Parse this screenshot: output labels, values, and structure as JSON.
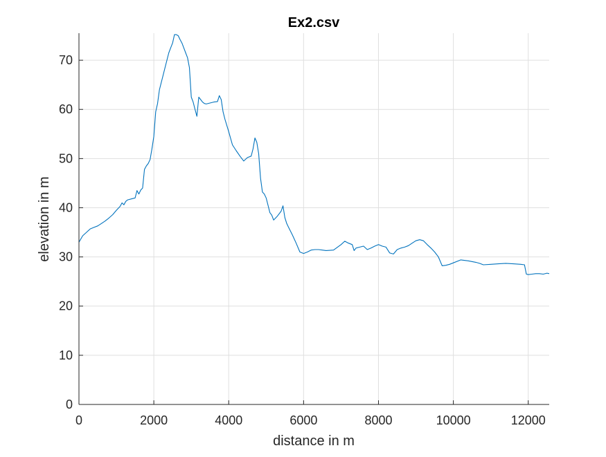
{
  "chart_data": {
    "type": "line",
    "title": "Ex2.csv",
    "xlabel": "distance in m",
    "ylabel": "elevation in m",
    "xlim": [
      0,
      12560
    ],
    "ylim": [
      0,
      75.5
    ],
    "xticks": [
      0,
      2000,
      4000,
      6000,
      8000,
      10000,
      12000
    ],
    "yticks": [
      0,
      10,
      20,
      30,
      40,
      50,
      60,
      70
    ],
    "grid": true,
    "legend": "none",
    "line_color": "#0072bd",
    "series": [
      {
        "x": [
          0,
          100,
          200,
          300,
          400,
          500,
          600,
          700,
          800,
          900,
          1000,
          1100,
          1150,
          1200,
          1250,
          1300,
          1400,
          1500,
          1550,
          1600,
          1650,
          1700,
          1750,
          1800,
          1850,
          1900,
          1950,
          2000,
          2050,
          2100,
          2150,
          2200,
          2250,
          2300,
          2350,
          2400,
          2450,
          2500,
          2550,
          2600,
          2650,
          2700,
          2750,
          2800,
          2850,
          2900,
          2950,
          3000,
          3050,
          3100,
          3150,
          3200,
          3250,
          3300,
          3350,
          3400,
          3500,
          3600,
          3700,
          3750,
          3800,
          3850,
          3900,
          4000,
          4100,
          4200,
          4300,
          4400,
          4500,
          4600,
          4650,
          4700,
          4750,
          4800,
          4850,
          4900,
          4950,
          5000,
          5050,
          5100,
          5150,
          5200,
          5300,
          5400,
          5450,
          5500,
          5550,
          5600,
          5700,
          5800,
          5900,
          6000,
          6100,
          6200,
          6300,
          6400,
          6500,
          6600,
          6800,
          7000,
          7100,
          7200,
          7300,
          7350,
          7400,
          7500,
          7600,
          7700,
          7800,
          7900,
          8000,
          8100,
          8200,
          8300,
          8400,
          8500,
          8600,
          8700,
          8800,
          8900,
          9000,
          9100,
          9200,
          9300,
          9400,
          9500,
          9600,
          9700,
          9800,
          9900,
          10000,
          10200,
          10400,
          10600,
          10700,
          10800,
          11000,
          11200,
          11400,
          11600,
          11800,
          11900,
          11950,
          12000,
          12100,
          12200,
          12300,
          12400,
          12500,
          12560
        ],
        "y": [
          33,
          34.3,
          35,
          35.7,
          36,
          36.3,
          36.8,
          37.3,
          37.9,
          38.6,
          39.5,
          40.3,
          41,
          40.6,
          41.3,
          41.6,
          41.8,
          42,
          43.5,
          42.8,
          43.6,
          44,
          47.8,
          48.5,
          49,
          49.8,
          52,
          54.5,
          59.5,
          61.2,
          64,
          65.5,
          67,
          68.5,
          70,
          71.5,
          72.5,
          73.5,
          75.2,
          75.2,
          75,
          74.2,
          73.5,
          72.5,
          71.5,
          70.5,
          68.5,
          62.5,
          61.5,
          60,
          58.6,
          62.5,
          62,
          61.5,
          61.2,
          61.1,
          61.3,
          61.5,
          61.6,
          62.8,
          62,
          59.5,
          58,
          55.5,
          52.8,
          51.6,
          50.5,
          49.5,
          50.2,
          50.5,
          52,
          54.2,
          53.3,
          51,
          46,
          43.2,
          42.8,
          42,
          40.5,
          39,
          38.5,
          37.5,
          38.3,
          39.3,
          40.4,
          38,
          36.8,
          36,
          34.5,
          32.8,
          31,
          30.7,
          31,
          31.4,
          31.5,
          31.5,
          31.4,
          31.3,
          31.4,
          32.5,
          33.2,
          32.8,
          32.5,
          31.3,
          31.8,
          32,
          32.2,
          31.5,
          31.8,
          32.2,
          32.5,
          32.2,
          32,
          30.8,
          30.6,
          31.5,
          31.8,
          32,
          32.3,
          32.8,
          33.3,
          33.5,
          33.3,
          32.5,
          31.8,
          31,
          30,
          28.2,
          28.3,
          28.5,
          28.8,
          29.4,
          29.2,
          28.9,
          28.7,
          28.4,
          28.5,
          28.6,
          28.7,
          28.6,
          28.5,
          28.4,
          26.5,
          26.4,
          26.5,
          26.6,
          26.6,
          26.5,
          26.7,
          26.6
        ]
      }
    ]
  }
}
